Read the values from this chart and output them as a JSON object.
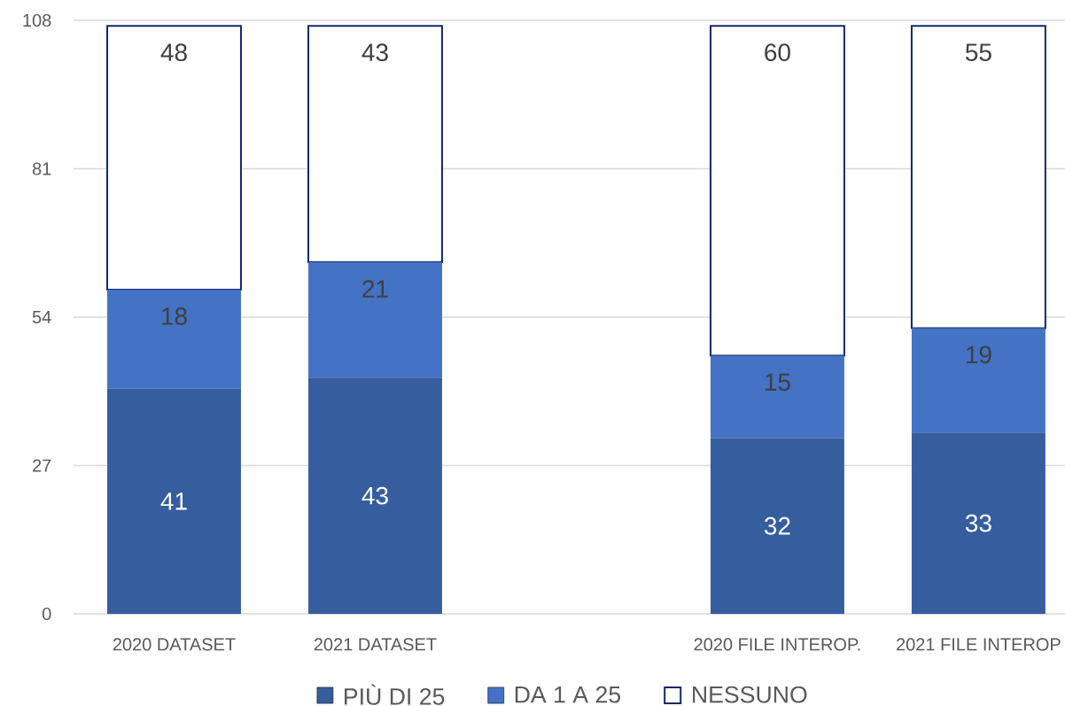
{
  "chart_data": {
    "type": "bar",
    "stacked": true,
    "categories": [
      "2020 DATASET",
      "2021 DATASET",
      null,
      "2020 FILE INTEROP.",
      "2021 FILE INTEROP"
    ],
    "series": [
      {
        "name": "PIÙ DI 25",
        "color": "#365e9f",
        "values": [
          41,
          43,
          null,
          32,
          33
        ]
      },
      {
        "name": "DA 1 A 25",
        "color": "#4472c4",
        "values": [
          18,
          21,
          null,
          15,
          19
        ]
      },
      {
        "name": "NESSUNO",
        "color": "#ffffff",
        "values": [
          48,
          43,
          null,
          60,
          55
        ]
      }
    ],
    "ylim": [
      0,
      108
    ],
    "yticks": [
      0,
      27,
      54,
      81,
      108
    ],
    "grid": "y",
    "legend": "bottom",
    "data_labels": true
  }
}
